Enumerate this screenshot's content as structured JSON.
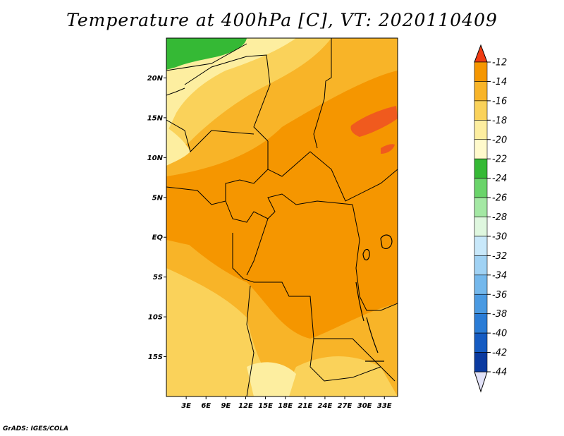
{
  "title": "Temperature at 400hPa [C], VT: 2020110409",
  "credit": "GrADS: IGES/COLA",
  "map": {
    "lat_range": [
      -20,
      25
    ],
    "lon_range": [
      0,
      35
    ],
    "lat_ticks": [
      {
        "value": 20,
        "label": "20N"
      },
      {
        "value": 15,
        "label": "15N"
      },
      {
        "value": 10,
        "label": "10N"
      },
      {
        "value": 5,
        "label": "5N"
      },
      {
        "value": 0,
        "label": "EQ"
      },
      {
        "value": -5,
        "label": "5S"
      },
      {
        "value": -10,
        "label": "10S"
      },
      {
        "value": -15,
        "label": "15S"
      }
    ],
    "lon_ticks": [
      {
        "value": 3,
        "label": "3E"
      },
      {
        "value": 6,
        "label": "6E"
      },
      {
        "value": 9,
        "label": "9E"
      },
      {
        "value": 12,
        "label": "12E"
      },
      {
        "value": 15,
        "label": "15E"
      },
      {
        "value": 18,
        "label": "18E"
      },
      {
        "value": 21,
        "label": "21E"
      },
      {
        "value": 24,
        "label": "24E"
      },
      {
        "value": 27,
        "label": "27E"
      },
      {
        "value": 30,
        "label": "30E"
      },
      {
        "value": 33,
        "label": "33E"
      }
    ]
  },
  "colorbar": {
    "labels": [
      "-12",
      "-14",
      "-16",
      "-18",
      "-20",
      "-22",
      "-24",
      "-26",
      "-28",
      "-30",
      "-32",
      "-34",
      "-36",
      "-38",
      "-40",
      "-42",
      "-44"
    ],
    "colors": [
      "#f05a1e",
      "#f59600",
      "#f8b428",
      "#fad25a",
      "#fdeea0",
      "#fffacc",
      "#35b935",
      "#6ad46a",
      "#a4e8a4",
      "#dff7df",
      "#c8e8fa",
      "#a0d2f4",
      "#74b8ec",
      "#4a9ae2",
      "#2a7cd6",
      "#155bc2",
      "#0a3aa0",
      "#06187a"
    ],
    "top_triangle": "#f03c14",
    "bottom_triangle": "#e2e2f8"
  }
}
